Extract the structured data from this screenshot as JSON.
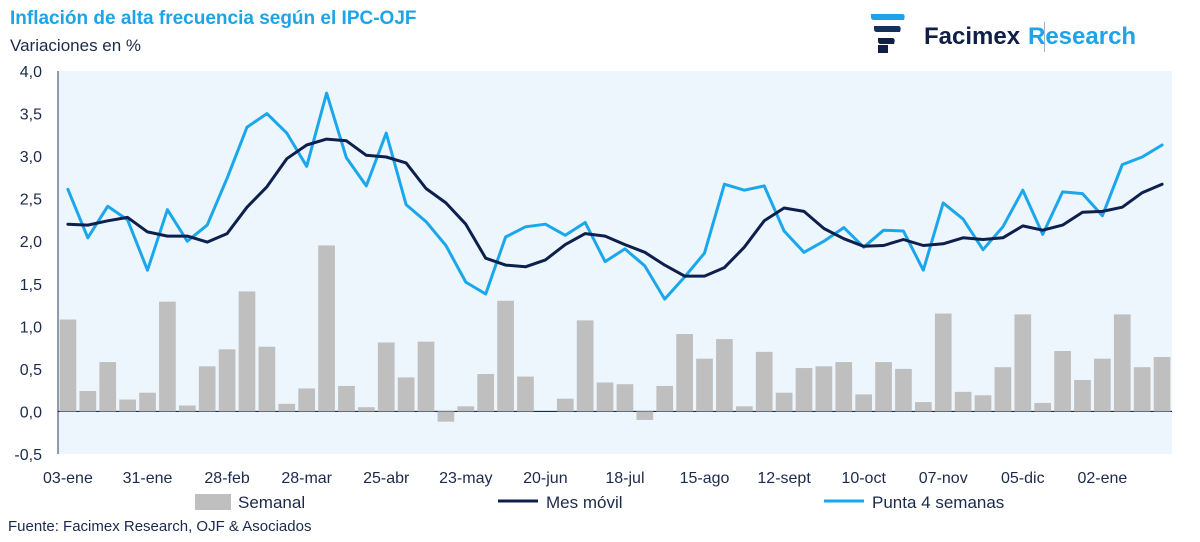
{
  "header": {
    "title": "Inflación de alta frecuencia según el IPC-OJF",
    "subtitle": "Variaciones en %"
  },
  "logo": {
    "brand": "Facimex",
    "division": "Research"
  },
  "footer": {
    "source": "Fuente: Facimex Research, OJF & Asociados"
  },
  "colors": {
    "semanal": "#bfbfbf",
    "mes_movil": "#0d1f4c",
    "punta": "#1aa7ec",
    "plot_bg": "#eef6fd",
    "title": "#1fa3e8"
  },
  "chart_data": {
    "type": "bar",
    "ylim": [
      -0.5,
      4.0
    ],
    "yticks": [
      "4,0",
      "3,5",
      "3,0",
      "2,5",
      "2,0",
      "1,5",
      "1,0",
      "0,5",
      "0,0",
      "-0,5"
    ],
    "ytick_values": [
      4.0,
      3.5,
      3.0,
      2.5,
      2.0,
      1.5,
      1.0,
      0.5,
      0.0,
      -0.5
    ],
    "xtick_labels": [
      "03-ene",
      "31-ene",
      "28-feb",
      "28-mar",
      "25-abr",
      "23-may",
      "20-jun",
      "18-jul",
      "15-ago",
      "12-sept",
      "10-oct",
      "07-nov",
      "05-dic",
      "02-ene"
    ],
    "xtick_positions": [
      0,
      4,
      8,
      12,
      16,
      20,
      24,
      28,
      32,
      36,
      40,
      44,
      48,
      52
    ],
    "series": [
      {
        "name": "Semanal",
        "type": "bar",
        "values": [
          1.08,
          0.24,
          0.58,
          0.14,
          0.22,
          1.29,
          0.07,
          0.53,
          0.73,
          1.41,
          0.76,
          0.09,
          0.27,
          1.95,
          0.3,
          0.05,
          0.81,
          0.4,
          0.82,
          -0.12,
          0.06,
          0.44,
          1.3,
          0.41,
          0.0,
          0.15,
          1.07,
          0.34,
          0.32,
          -0.1,
          0.3,
          0.91,
          0.62,
          0.85,
          0.06,
          0.7,
          0.22,
          0.51,
          0.53,
          0.58,
          0.2,
          0.58,
          0.5,
          0.11,
          1.15,
          0.23,
          0.19,
          0.52,
          1.14,
          0.1,
          0.71,
          0.37,
          0.62,
          1.14,
          0.52,
          0.64
        ]
      },
      {
        "name": "Mes móvil",
        "type": "line",
        "values": [
          2.2,
          2.19,
          2.24,
          2.28,
          2.11,
          2.06,
          2.06,
          1.99,
          2.09,
          2.4,
          2.64,
          2.97,
          3.13,
          3.2,
          3.18,
          3.01,
          2.99,
          2.92,
          2.62,
          2.45,
          2.2,
          1.8,
          1.72,
          1.7,
          1.78,
          1.96,
          2.09,
          2.06,
          1.96,
          1.87,
          1.72,
          1.59,
          1.59,
          1.69,
          1.93,
          2.24,
          2.39,
          2.35,
          2.15,
          2.03,
          1.94,
          1.95,
          2.02,
          1.95,
          1.97,
          2.04,
          2.02,
          2.04,
          2.18,
          2.13,
          2.19,
          2.34,
          2.35,
          2.4,
          2.57,
          2.67
        ]
      },
      {
        "name": "Punta 4 semanas",
        "type": "line",
        "values": [
          2.61,
          2.04,
          2.41,
          2.25,
          1.66,
          2.37,
          2.0,
          2.19,
          2.74,
          3.34,
          3.5,
          3.27,
          2.88,
          3.74,
          2.98,
          2.65,
          3.27,
          2.43,
          2.23,
          1.95,
          1.52,
          1.38,
          2.05,
          2.17,
          2.2,
          2.07,
          2.22,
          1.76,
          1.91,
          1.71,
          1.32,
          1.58,
          1.86,
          2.67,
          2.6,
          2.65,
          2.12,
          1.87,
          2.0,
          2.16,
          1.93,
          2.13,
          2.12,
          1.66,
          2.45,
          2.26,
          1.9,
          2.17,
          2.6,
          2.08,
          2.58,
          2.56,
          2.3,
          2.9,
          2.99,
          3.13
        ]
      }
    ]
  }
}
